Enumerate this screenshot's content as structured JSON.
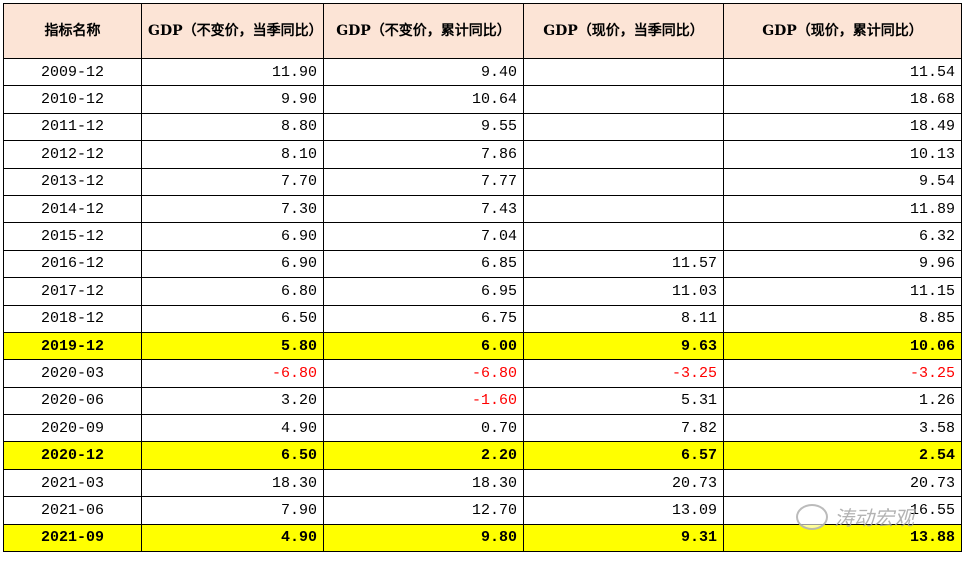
{
  "headers": [
    "指标名称",
    "GDP（不变价，当季同比）",
    "GDP（不变价，累计同比）",
    "GDP（现价，当季同比）",
    "GDP（现价，累计同比）"
  ],
  "rows": [
    {
      "date": "2009-12",
      "v": [
        "11.90",
        "9.40",
        "",
        "11.54"
      ],
      "hl": false
    },
    {
      "date": "2010-12",
      "v": [
        "9.90",
        "10.64",
        "",
        "18.68"
      ],
      "hl": false
    },
    {
      "date": "2011-12",
      "v": [
        "8.80",
        "9.55",
        "",
        "18.49"
      ],
      "hl": false
    },
    {
      "date": "2012-12",
      "v": [
        "8.10",
        "7.86",
        "",
        "10.13"
      ],
      "hl": false
    },
    {
      "date": "2013-12",
      "v": [
        "7.70",
        "7.77",
        "",
        "9.54"
      ],
      "hl": false
    },
    {
      "date": "2014-12",
      "v": [
        "7.30",
        "7.43",
        "",
        "11.89"
      ],
      "hl": false
    },
    {
      "date": "2015-12",
      "v": [
        "6.90",
        "7.04",
        "",
        "6.32"
      ],
      "hl": false
    },
    {
      "date": "2016-12",
      "v": [
        "6.90",
        "6.85",
        "11.57",
        "9.96"
      ],
      "hl": false
    },
    {
      "date": "2017-12",
      "v": [
        "6.80",
        "6.95",
        "11.03",
        "11.15"
      ],
      "hl": false
    },
    {
      "date": "2018-12",
      "v": [
        "6.50",
        "6.75",
        "8.11",
        "8.85"
      ],
      "hl": false
    },
    {
      "date": "2019-12",
      "v": [
        "5.80",
        "6.00",
        "9.63",
        "10.06"
      ],
      "hl": true
    },
    {
      "date": "2020-03",
      "v": [
        "-6.80",
        "-6.80",
        "-3.25",
        "-3.25"
      ],
      "hl": false
    },
    {
      "date": "2020-06",
      "v": [
        "3.20",
        "-1.60",
        "5.31",
        "1.26"
      ],
      "hl": false
    },
    {
      "date": "2020-09",
      "v": [
        "4.90",
        "0.70",
        "7.82",
        "3.58"
      ],
      "hl": false
    },
    {
      "date": "2020-12",
      "v": [
        "6.50",
        "2.20",
        "6.57",
        "2.54"
      ],
      "hl": true
    },
    {
      "date": "2021-03",
      "v": [
        "18.30",
        "18.30",
        "20.73",
        "20.73"
      ],
      "hl": false
    },
    {
      "date": "2021-06",
      "v": [
        "7.90",
        "12.70",
        "13.09",
        "16.55"
      ],
      "hl": false
    },
    {
      "date": "2021-09",
      "v": [
        "4.90",
        "9.80",
        "9.31",
        "13.88"
      ],
      "hl": true
    }
  ],
  "colors": {
    "header_bg": "#FCE4D6",
    "highlight": "#FFFF00",
    "negative": "#FF0000"
  },
  "watermark": {
    "text": "涛动宏观",
    "icon": "wechat-icon"
  }
}
